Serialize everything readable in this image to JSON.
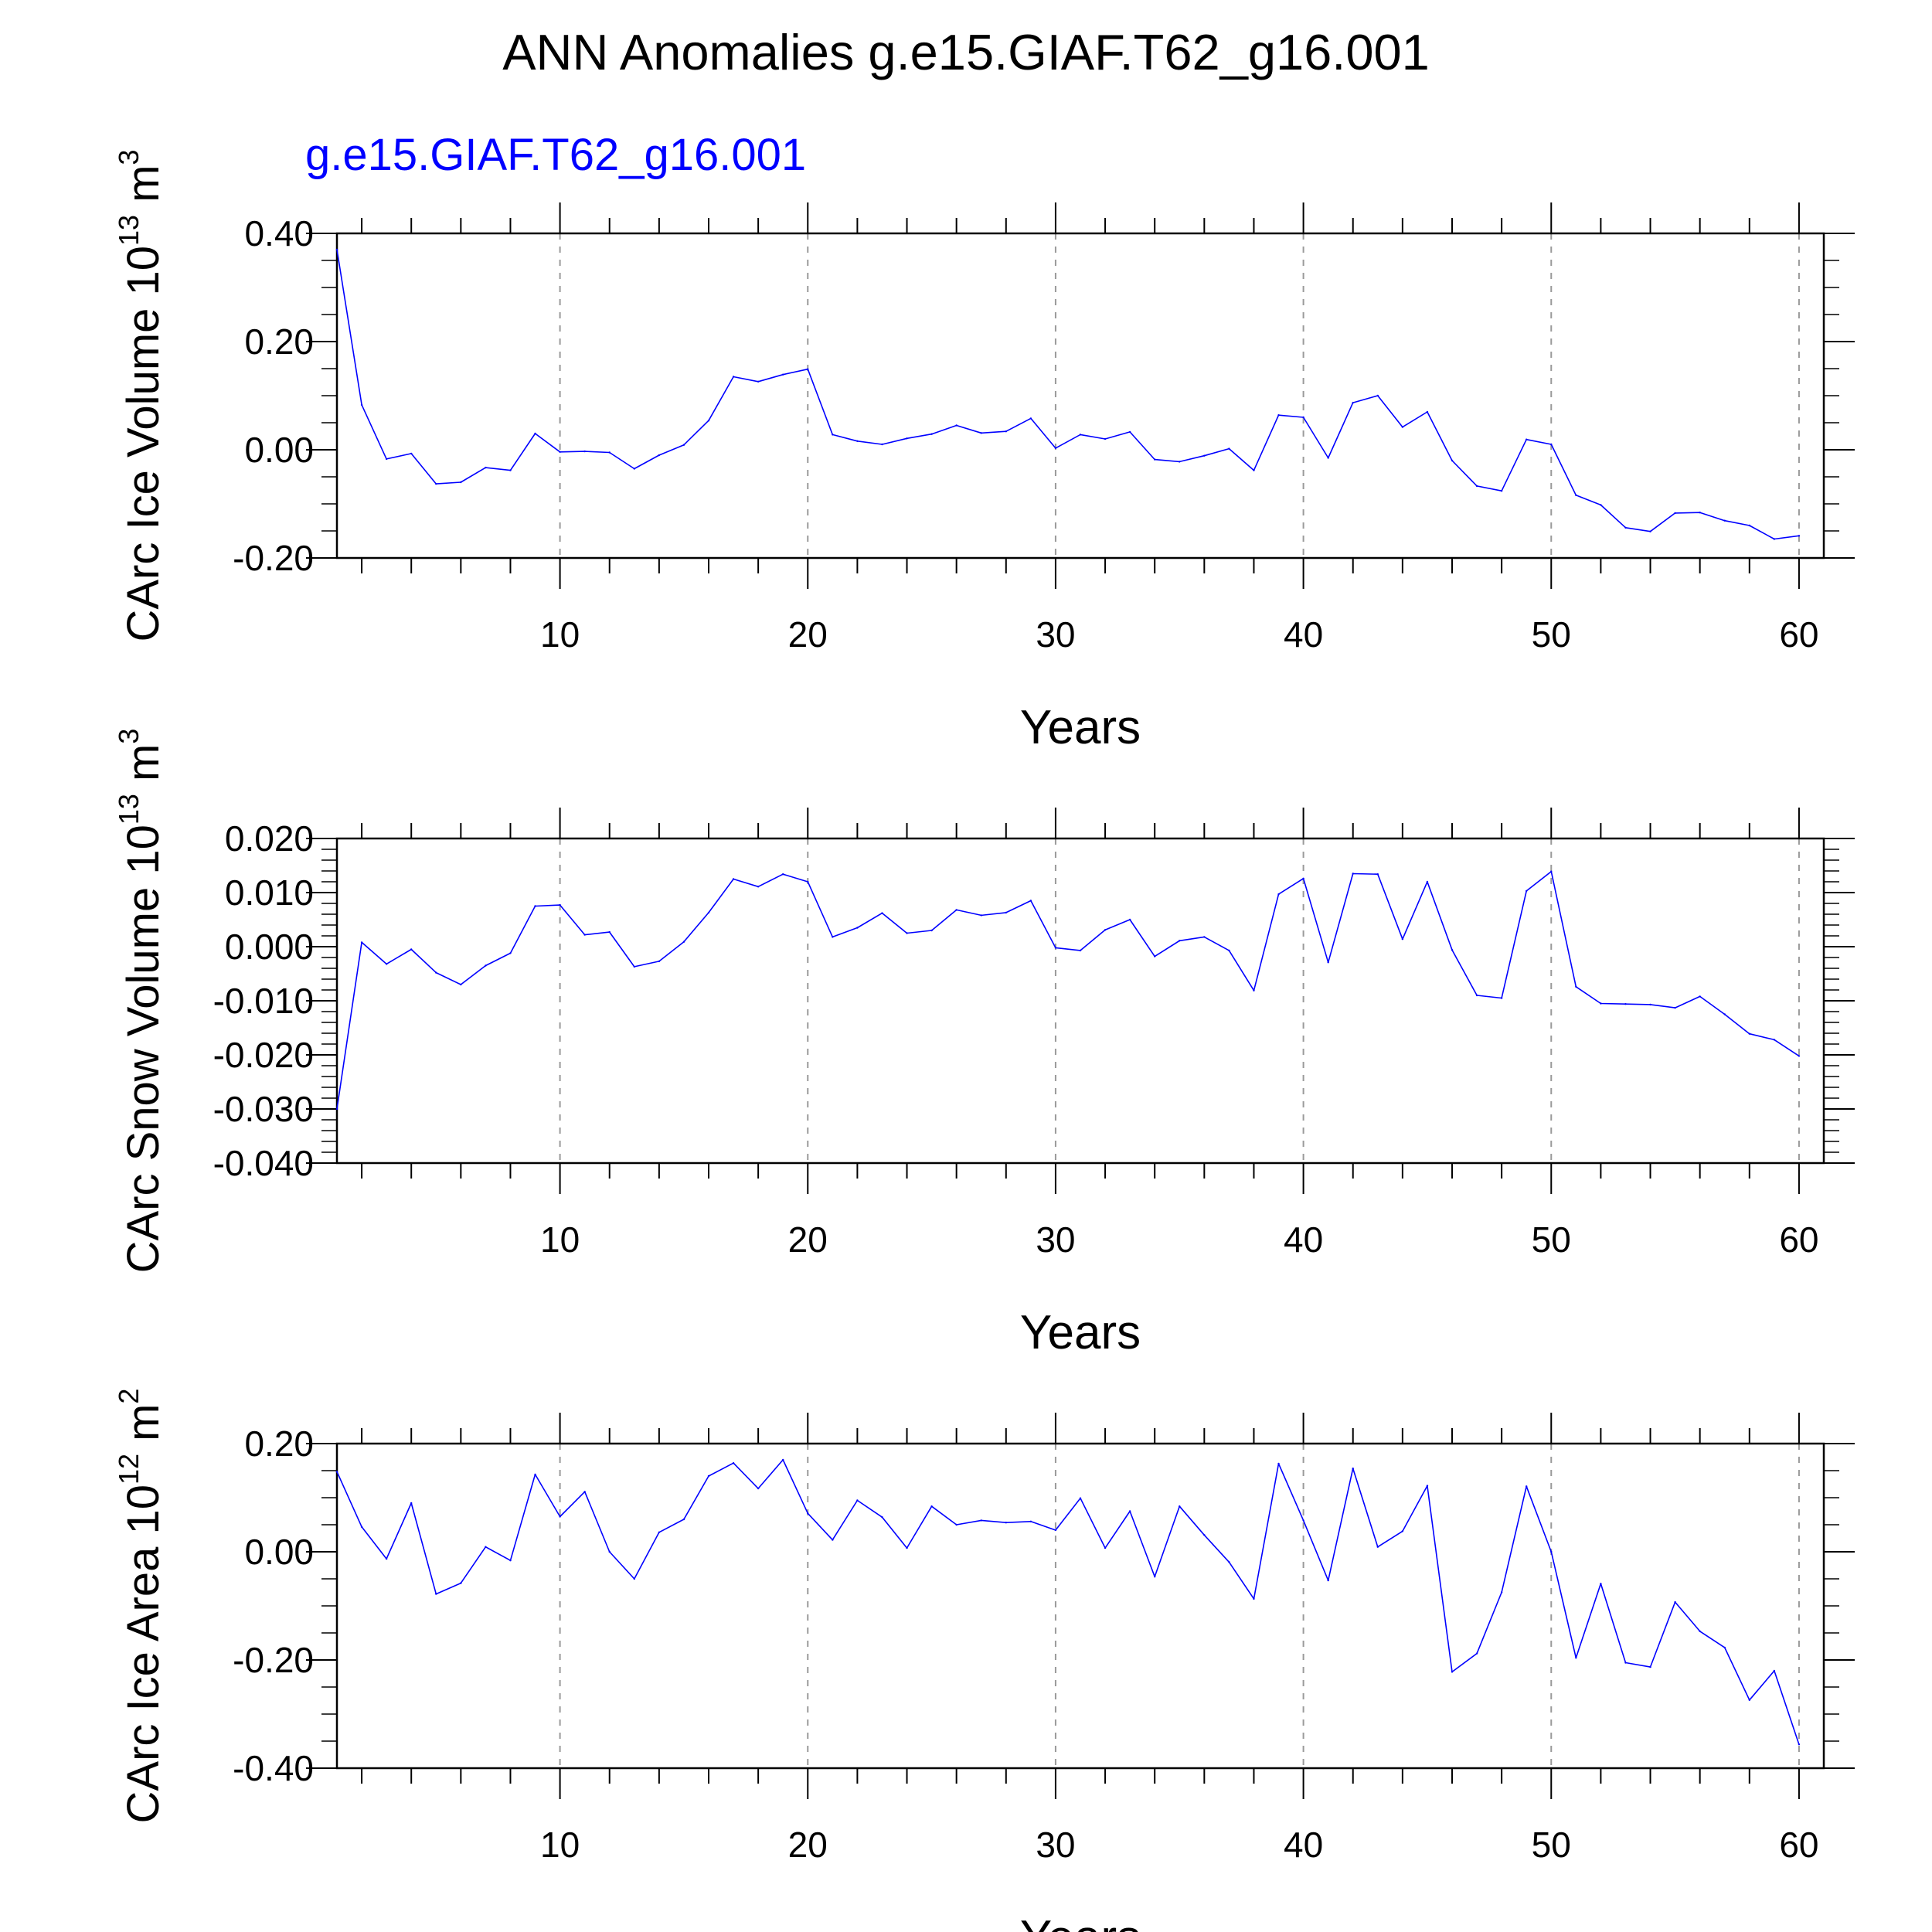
{
  "title": "ANN Anomalies g.e15.GIAF.T62_g16.001",
  "subtitle": "g.e15.GIAF.T62_g16.001",
  "colors": {
    "series": "#0000ff",
    "subtitle": "#0000ff",
    "axis": "#000000",
    "grid": "#9a9a9a"
  },
  "chart_data": [
    {
      "type": "line",
      "title": "ANN Anomalies g.e15.GIAF.T62_g16.001",
      "subtitle": "g.e15.GIAF.T62_g16.001",
      "xlabel": "Years",
      "ylabel": "CArc Ice Volume 10",
      "ylabel_exp": "13",
      "ylabel_unit": " m",
      "ylabel_unit_exp": "3",
      "xlim": [
        1,
        61
      ],
      "ylim": [
        -0.2,
        0.4
      ],
      "xticks": [
        10,
        20,
        30,
        40,
        50,
        60
      ],
      "xtick_labels": [
        "10",
        "20",
        "30",
        "40",
        "50",
        "60"
      ],
      "yticks": [
        -0.2,
        0.0,
        0.2,
        0.4
      ],
      "ytick_labels": [
        "-0.20",
        "0.00",
        "0.20",
        "0.40"
      ],
      "y_minor_step": 0.05,
      "grid": "vertical dashed at major x ticks",
      "series": [
        {
          "name": "g.e15.GIAF.T62_g16.001",
          "x": [
            1,
            2,
            3,
            4,
            5,
            6,
            7,
            8,
            9,
            10,
            11,
            12,
            13,
            14,
            15,
            16,
            17,
            18,
            19,
            20,
            21,
            22,
            23,
            24,
            25,
            26,
            27,
            28,
            29,
            30,
            31,
            32,
            33,
            34,
            35,
            36,
            37,
            38,
            39,
            40,
            41,
            42,
            43,
            44,
            45,
            46,
            47,
            48,
            49,
            50,
            51,
            52,
            53,
            54,
            55,
            56,
            57,
            58,
            59,
            60
          ],
          "values": [
            0.37,
            0.083,
            -0.017,
            -0.007,
            -0.063,
            -0.06,
            -0.033,
            -0.038,
            0.03,
            -0.004,
            -0.003,
            -0.005,
            -0.035,
            -0.01,
            0.009,
            0.054,
            0.135,
            0.126,
            0.139,
            0.149,
            0.028,
            0.016,
            0.01,
            0.021,
            0.029,
            0.045,
            0.031,
            0.034,
            0.058,
            0.003,
            0.028,
            0.02,
            0.033,
            -0.018,
            -0.022,
            -0.011,
            0.002,
            -0.038,
            0.064,
            0.06,
            -0.015,
            0.087,
            0.1,
            0.042,
            0.07,
            -0.02,
            -0.067,
            -0.076,
            0.019,
            0.01,
            -0.084,
            -0.102,
            -0.144,
            -0.151,
            -0.117,
            -0.116,
            -0.131,
            -0.14,
            -0.165,
            -0.159
          ]
        }
      ]
    },
    {
      "type": "line",
      "xlabel": "Years",
      "ylabel": "CArc Snow Volume 10",
      "ylabel_exp": "13",
      "ylabel_unit": " m",
      "ylabel_unit_exp": "3",
      "xlim": [
        1,
        61
      ],
      "ylim": [
        -0.04,
        0.02
      ],
      "xticks": [
        10,
        20,
        30,
        40,
        50,
        60
      ],
      "xtick_labels": [
        "10",
        "20",
        "30",
        "40",
        "50",
        "60"
      ],
      "yticks": [
        -0.04,
        -0.03,
        -0.02,
        -0.01,
        0.0,
        0.01,
        0.02
      ],
      "ytick_labels": [
        "-0.040",
        "-0.030",
        "-0.020",
        "-0.010",
        "0.000",
        "0.010",
        "0.020"
      ],
      "y_minor_step": 0.002,
      "grid": "vertical dashed at major x ticks",
      "series": [
        {
          "name": "g.e15.GIAF.T62_g16.001",
          "x": [
            1,
            2,
            3,
            4,
            5,
            6,
            7,
            8,
            9,
            10,
            11,
            12,
            13,
            14,
            15,
            16,
            17,
            18,
            19,
            20,
            21,
            22,
            23,
            24,
            25,
            26,
            27,
            28,
            29,
            30,
            31,
            32,
            33,
            34,
            35,
            36,
            37,
            38,
            39,
            40,
            41,
            42,
            43,
            44,
            45,
            46,
            47,
            48,
            49,
            50,
            51,
            52,
            53,
            54,
            55,
            56,
            57,
            58,
            59,
            60
          ],
          "values": [
            -0.03,
            0.0008,
            -0.0032,
            -0.0005,
            -0.0048,
            -0.007,
            -0.0035,
            -0.0012,
            0.0075,
            0.0077,
            0.0022,
            0.0027,
            -0.0037,
            -0.0027,
            0.0009,
            0.0063,
            0.0125,
            0.0111,
            0.0134,
            0.012,
            0.0018,
            0.0035,
            0.0062,
            0.0025,
            0.003,
            0.0068,
            0.0058,
            0.0063,
            0.0085,
            -0.0002,
            -0.0007,
            0.0031,
            0.005,
            -0.0018,
            0.0011,
            0.0018,
            -0.0007,
            -0.0081,
            0.0097,
            0.0126,
            -0.0029,
            0.0135,
            0.0134,
            0.0014,
            0.012,
            -0.0006,
            -0.009,
            -0.0095,
            0.0103,
            0.0139,
            -0.0074,
            -0.0105,
            -0.0106,
            -0.0107,
            -0.0113,
            -0.0092,
            -0.0125,
            -0.0161,
            -0.0172,
            -0.0202
          ]
        }
      ]
    },
    {
      "type": "line",
      "xlabel": "Years",
      "ylabel": "CArc Ice Area 10",
      "ylabel_exp": "12",
      "ylabel_unit": " m",
      "ylabel_unit_exp": "2",
      "xlim": [
        1,
        61
      ],
      "ylim": [
        -0.4,
        0.2
      ],
      "xticks": [
        10,
        20,
        30,
        40,
        50,
        60
      ],
      "xtick_labels": [
        "10",
        "20",
        "30",
        "40",
        "50",
        "60"
      ],
      "yticks": [
        -0.4,
        -0.2,
        0.0,
        0.2
      ],
      "ytick_labels": [
        "-0.40",
        "-0.20",
        "0.00",
        "0.20"
      ],
      "y_minor_step": 0.05,
      "grid": "vertical dashed at major x ticks",
      "series": [
        {
          "name": "g.e15.GIAF.T62_g16.001",
          "x": [
            1,
            2,
            3,
            4,
            5,
            6,
            7,
            8,
            9,
            10,
            11,
            12,
            13,
            14,
            15,
            16,
            17,
            18,
            19,
            20,
            21,
            22,
            23,
            24,
            25,
            26,
            27,
            28,
            29,
            30,
            31,
            32,
            33,
            34,
            35,
            36,
            37,
            38,
            39,
            40,
            41,
            42,
            43,
            44,
            45,
            46,
            47,
            48,
            49,
            50,
            51,
            52,
            53,
            54,
            55,
            56,
            57,
            58,
            59,
            60
          ],
          "values": [
            0.148,
            0.046,
            -0.013,
            0.09,
            -0.078,
            -0.058,
            0.009,
            -0.016,
            0.143,
            0.065,
            0.111,
            0.0,
            -0.05,
            0.036,
            0.06,
            0.14,
            0.164,
            0.117,
            0.17,
            0.071,
            0.022,
            0.095,
            0.064,
            0.007,
            0.084,
            0.05,
            0.058,
            0.054,
            0.056,
            0.04,
            0.099,
            0.007,
            0.075,
            -0.046,
            0.084,
            0.031,
            -0.019,
            -0.087,
            0.163,
            0.058,
            -0.053,
            0.154,
            0.009,
            0.038,
            0.122,
            -0.222,
            -0.188,
            -0.075,
            0.121,
            0.0,
            -0.196,
            -0.059,
            -0.205,
            -0.213,
            -0.093,
            -0.147,
            -0.177,
            -0.274,
            -0.22,
            -0.356
          ]
        }
      ]
    }
  ]
}
